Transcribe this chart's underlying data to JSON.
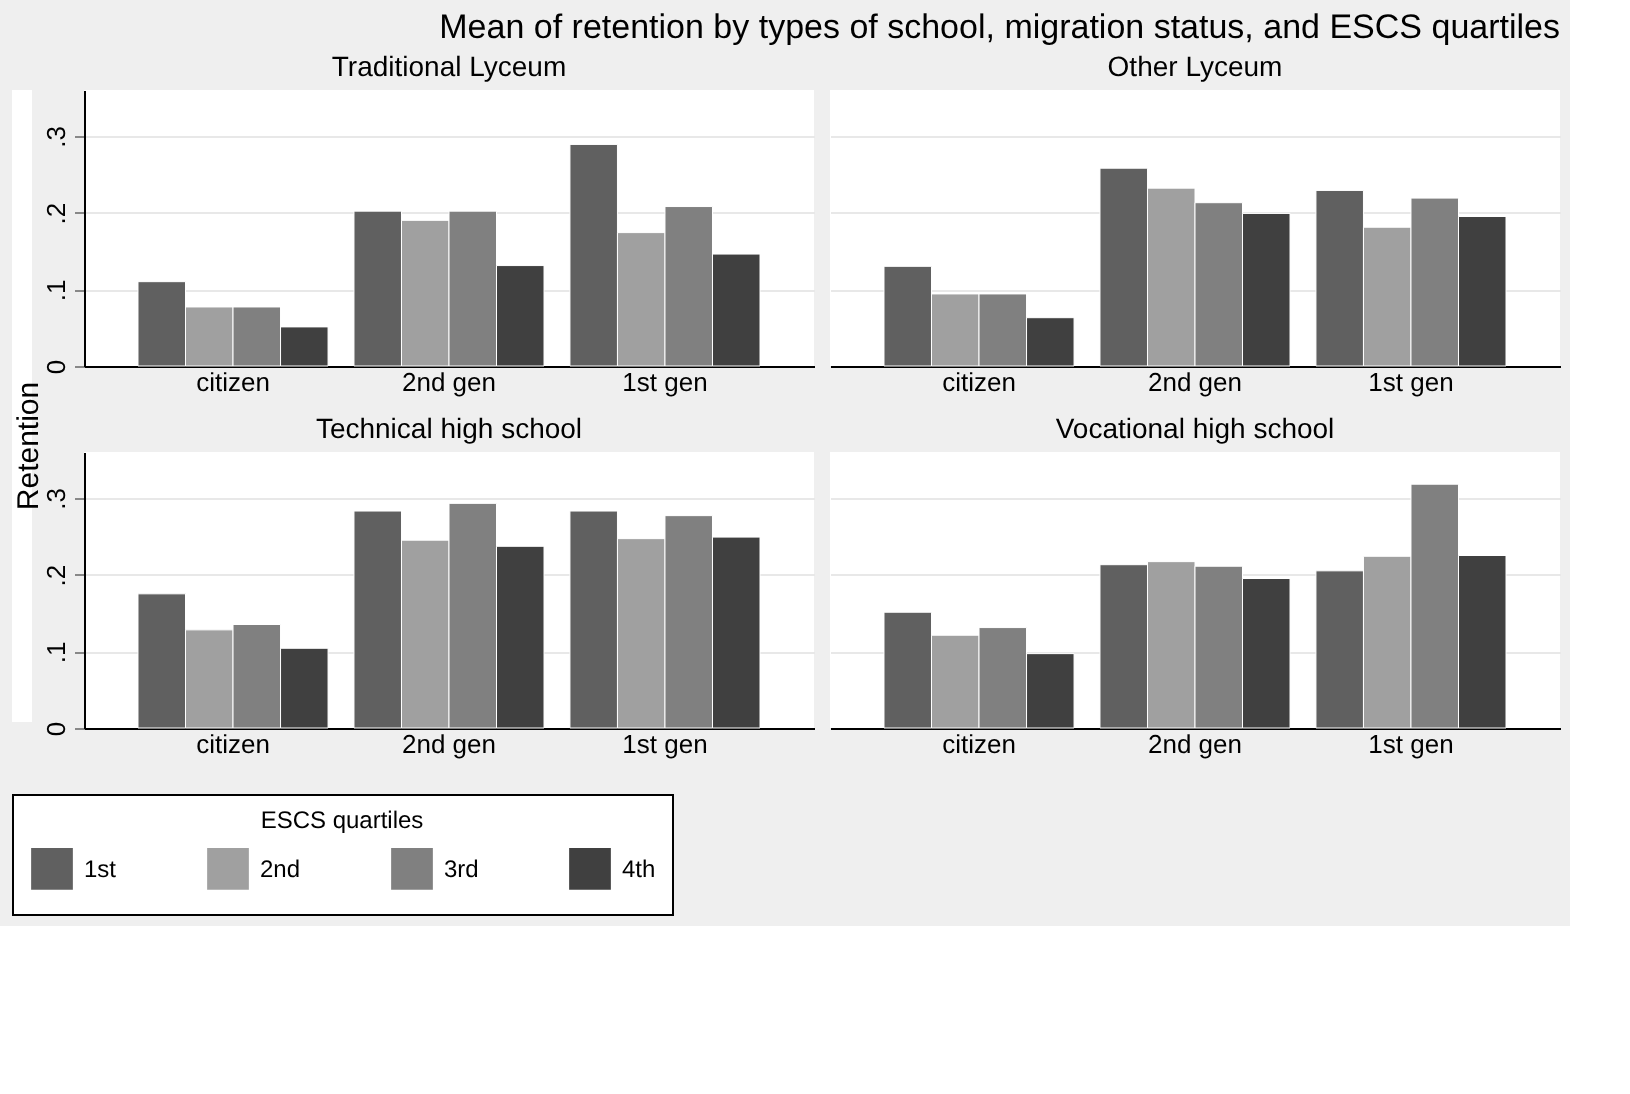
{
  "chart_data": [
    {
      "type": "bar",
      "title": "Traditional Lyceum",
      "ylabel": "Retention",
      "annotations": [
        "Mean of retention by types of school, migration status, and ESCS quartiles"
      ],
      "legend_title": "ESCS quartiles",
      "legend": "bottom",
      "categories": [
        "citizen",
        "2nd gen",
        "1st gen"
      ],
      "series": [
        {
          "name": "1st",
          "color": "#606060",
          "values": [
            0.11,
            0.202,
            0.289
          ]
        },
        {
          "name": "2nd",
          "color": "#a0a0a0",
          "values": [
            0.077,
            0.19,
            0.174
          ]
        },
        {
          "name": "3rd",
          "color": "#808080",
          "values": [
            0.077,
            0.202,
            0.208
          ]
        },
        {
          "name": "4th",
          "color": "#404040",
          "values": [
            0.051,
            0.131,
            0.146
          ]
        }
      ],
      "ylim": [
        0,
        0.36
      ],
      "yticks": [
        0,
        {
          "value": 0.1,
          "label": ".1"
        },
        {
          "value": 0.2,
          "label": ".2"
        },
        {
          "value": 0.3,
          "label": ".3"
        }
      ],
      "grid": "y"
    },
    {
      "type": "bar",
      "title": "Other Lyceum",
      "categories": [
        "citizen",
        "2nd gen",
        "1st gen"
      ],
      "series": [
        {
          "name": "1st",
          "color": "#606060",
          "values": [
            0.13,
            0.258,
            0.229
          ]
        },
        {
          "name": "2nd",
          "color": "#a0a0a0",
          "values": [
            0.094,
            0.232,
            0.181
          ]
        },
        {
          "name": "3rd",
          "color": "#808080",
          "values": [
            0.094,
            0.213,
            0.219
          ]
        },
        {
          "name": "4th",
          "color": "#404040",
          "values": [
            0.063,
            0.199,
            0.195
          ]
        }
      ],
      "ylim": [
        0,
        0.36
      ],
      "yticks": [
        0,
        0.1,
        0.2,
        0.3
      ],
      "grid": "y",
      "tick_labels": "x"
    },
    {
      "type": "bar",
      "title": "Technical high school",
      "categories": [
        "citizen",
        "2nd gen",
        "1st gen"
      ],
      "series": [
        {
          "name": "1st",
          "color": "#606060",
          "values": [
            0.175,
            0.283,
            0.283
          ]
        },
        {
          "name": "2nd",
          "color": "#a0a0a0",
          "values": [
            0.128,
            0.245,
            0.247
          ]
        },
        {
          "name": "3rd",
          "color": "#808080",
          "values": [
            0.135,
            0.293,
            0.277
          ]
        },
        {
          "name": "4th",
          "color": "#404040",
          "values": [
            0.104,
            0.237,
            0.249
          ]
        }
      ],
      "ylim": [
        0,
        0.36
      ],
      "yticks": [
        0,
        {
          "value": 0.1,
          "label": ".1"
        },
        {
          "value": 0.2,
          "label": ".2"
        },
        {
          "value": 0.3,
          "label": ".3"
        }
      ],
      "grid": "y"
    },
    {
      "type": "bar",
      "title": "Vocational high school",
      "categories": [
        "citizen",
        "2nd gen",
        "1st gen"
      ],
      "series": [
        {
          "name": "1st",
          "color": "#606060",
          "values": [
            0.151,
            0.213,
            0.205
          ]
        },
        {
          "name": "2nd",
          "color": "#a0a0a0",
          "values": [
            0.121,
            0.217,
            0.224
          ]
        },
        {
          "name": "3rd",
          "color": "#808080",
          "values": [
            0.131,
            0.211,
            0.318
          ]
        },
        {
          "name": "4th",
          "color": "#404040",
          "values": [
            0.097,
            0.195,
            0.225
          ]
        }
      ],
      "ylim": [
        0,
        0.36
      ],
      "yticks": [
        0,
        0.1,
        0.2,
        0.3
      ],
      "grid": "y",
      "tick_labels": "x"
    }
  ]
}
